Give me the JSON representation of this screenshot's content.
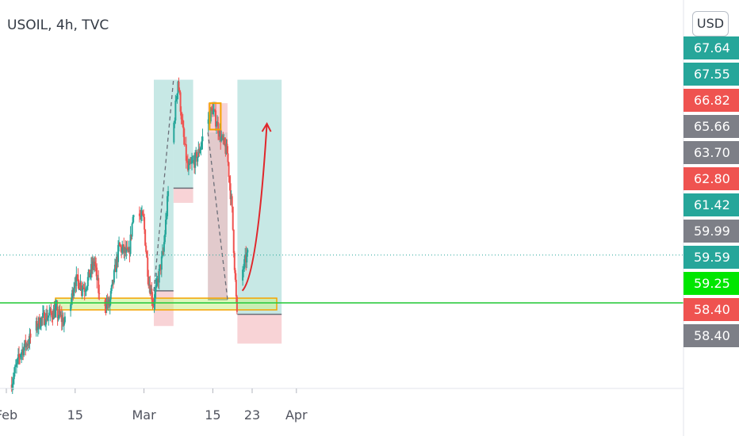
{
  "header": {
    "symbol": "USOIL, 4h, TVC",
    "currency": "USD"
  },
  "colors": {
    "up": "#26a69a",
    "down": "#ef5350",
    "support_line": "#2ecc40",
    "zone_border": "#f5a300",
    "zone_fill": "#c9f08a",
    "profit": "#26a69a",
    "loss": "#f4b6ba",
    "arrow": "#e0262b",
    "last_price_line": "#26a69a"
  },
  "chart_data": {
    "type": "candlestick",
    "title": "USOIL, 4h, TVC",
    "x_ticks": [
      "Feb",
      "15",
      "Mar",
      "15",
      "23",
      "Apr"
    ],
    "x_tick_dates": [
      "2021-02-01",
      "2021-02-15",
      "2021-03-01",
      "2021-03-15",
      "2021-03-23",
      "2021-04-01"
    ],
    "price_range": [
      56.9,
      68.6
    ],
    "last_price": 61.42,
    "y_labels": [
      {
        "value": 67.64,
        "text": "67.64",
        "color": "#26a69a"
      },
      {
        "value": 67.55,
        "text": "67.55",
        "color": "#26a69a"
      },
      {
        "value": 66.82,
        "text": "66.82",
        "color": "#ef5350"
      },
      {
        "value": 65.66,
        "text": "65.66",
        "color": "#7d7f87"
      },
      {
        "value": 63.7,
        "text": "63.70",
        "color": "#7d7f87"
      },
      {
        "value": 62.8,
        "text": "62.80",
        "color": "#ef5350"
      },
      {
        "value": 61.42,
        "text": "61.42",
        "color": "#26a69a"
      },
      {
        "value": 59.99,
        "text": "59.99",
        "color": "#7d7f87"
      },
      {
        "value": 59.59,
        "text": "59.59",
        "color": "#26a69a"
      },
      {
        "value": 59.25,
        "text": "59.25",
        "color": "#00e600"
      },
      {
        "value": 58.4,
        "text": "58.40",
        "color": "#ef5350"
      },
      {
        "value": 58.4,
        "text": "58.40",
        "color": "#7d7f87"
      }
    ],
    "price_path": [
      [
        "2021-02-02",
        57.0
      ],
      [
        "2021-02-04",
        58.1
      ],
      [
        "2021-02-06",
        58.6
      ],
      [
        "2021-02-08",
        59.2
      ],
      [
        "2021-02-11",
        59.5
      ],
      [
        "2021-02-13",
        59.1
      ],
      [
        "2021-02-14",
        59.6
      ],
      [
        "2021-02-15",
        60.6
      ],
      [
        "2021-02-17",
        60.3
      ],
      [
        "2021-02-19",
        61.2
      ],
      [
        "2021-02-20",
        60.0
      ],
      [
        "2021-02-22",
        59.7
      ],
      [
        "2021-02-24",
        61.7
      ],
      [
        "2021-02-26",
        61.4
      ],
      [
        "2021-02-27",
        63.0
      ],
      [
        "2021-03-01",
        62.6
      ],
      [
        "2021-03-02",
        60.6
      ],
      [
        "2021-03-03",
        59.8
      ],
      [
        "2021-03-05",
        61.5
      ],
      [
        "2021-03-07",
        65.6
      ],
      [
        "2021-03-08",
        67.4
      ],
      [
        "2021-03-09",
        65.6
      ],
      [
        "2021-03-10",
        64.3
      ],
      [
        "2021-03-12",
        64.8
      ],
      [
        "2021-03-14",
        66.0
      ],
      [
        "2021-03-15",
        66.4
      ],
      [
        "2021-03-17",
        65.3
      ],
      [
        "2021-03-18",
        64.9
      ],
      [
        "2021-03-19",
        62.9
      ],
      [
        "2021-03-20",
        59.3
      ],
      [
        "2021-03-21",
        60.8
      ],
      [
        "2021-03-22",
        61.4
      ]
    ],
    "support_line": 59.79,
    "support_zone": {
      "from": "2021-02-11",
      "to": "2021-03-28",
      "top": 59.95,
      "bottom": 59.55
    },
    "positions": [
      {
        "from": "2021-03-03",
        "to": "2021-03-07",
        "target": 67.4,
        "entry": 60.2,
        "stop": 59.0
      },
      {
        "from": "2021-03-07",
        "to": "2021-03-11",
        "target": 67.4,
        "entry": 63.7,
        "stop": 63.2
      },
      {
        "from": "2021-03-14",
        "to": "2021-03-18",
        "target": 65.6,
        "entry": 59.9,
        "stop": 66.6
      },
      {
        "from": "2021-03-20",
        "to": "2021-03-29",
        "target": 67.4,
        "entry": 59.4,
        "stop": 58.4
      }
    ],
    "small_box": {
      "from": "2021-03-15",
      "to": "2021-03-15",
      "top": 66.6,
      "bottom": 65.7
    },
    "projection": [
      [
        "2021-03-21",
        60.2
      ],
      [
        "2021-03-26",
        65.9
      ]
    ]
  }
}
